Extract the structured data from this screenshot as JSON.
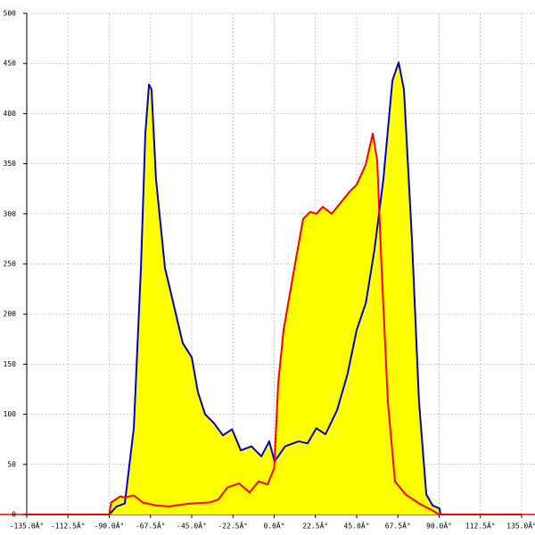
{
  "chart_data": {
    "type": "area",
    "xlim": [
      -135,
      135
    ],
    "ylim": [
      0,
      500
    ],
    "xticks": [
      {
        "value": -135,
        "label": "-135.0Â°"
      },
      {
        "value": -112.5,
        "label": "-112.5Â°"
      },
      {
        "value": -90,
        "label": "-90.0Â°"
      },
      {
        "value": -67.5,
        "label": "-67.5Â°"
      },
      {
        "value": -45,
        "label": "-45.0Â°"
      },
      {
        "value": -22.5,
        "label": "-22.5Â°"
      },
      {
        "value": 0,
        "label": "0.0Â°"
      },
      {
        "value": 22.5,
        "label": "22.5Â°"
      },
      {
        "value": 45,
        "label": "45.0Â°"
      },
      {
        "value": 67.5,
        "label": "67.5Â°"
      },
      {
        "value": 90,
        "label": "90.0Â°"
      },
      {
        "value": 112.5,
        "label": "112.5Â°"
      },
      {
        "value": 135,
        "label": "135.0Â°"
      }
    ],
    "yticks": [
      0,
      50,
      100,
      150,
      200,
      250,
      300,
      350,
      400,
      450,
      500
    ],
    "grid": true,
    "fill_color": "#ffff00",
    "series": [
      {
        "color": "#0000cc",
        "x": [
          -90,
          -86,
          -81.5,
          -76.6,
          -72.7,
          -70.3,
          -68.3,
          -66.9,
          -64.5,
          -59.6,
          -56.2,
          -49.9,
          -45,
          -41.6,
          -37.7,
          -32.8,
          -28,
          -23,
          -18.2,
          -12.4,
          -7,
          -2.7,
          0.2,
          6,
          13.4,
          18.2,
          23,
          28,
          34.3,
          40,
          45,
          50,
          54.7,
          59.6,
          64.5,
          67.9,
          70.8,
          75.2,
          79,
          83,
          86.4,
          90.2,
          90.7
        ],
        "values": [
          0,
          8,
          11,
          86,
          246,
          380,
          429,
          424,
          335,
          246,
          220,
          171,
          157,
          122,
          100,
          91,
          79,
          85,
          64,
          68,
          58,
          73,
          53,
          68,
          73,
          71,
          86,
          80,
          104,
          140,
          184,
          211,
          264,
          335,
          433,
          451,
          424,
          273,
          113,
          20,
          9,
          6,
          0
        ]
      },
      {
        "color": "#ff0000",
        "x": [
          -135,
          -90,
          -89,
          -84,
          -81.5,
          -76.6,
          -71.7,
          -64.5,
          -57.2,
          -49.9,
          -45,
          -35.3,
          -30.4,
          -25.5,
          -19.2,
          -13.4,
          -8.5,
          -3.6,
          0,
          2.2,
          5.1,
          11,
          15.8,
          19.7,
          23,
          26.5,
          31.4,
          35.3,
          41.1,
          45,
          49.9,
          53.8,
          56.2,
          58.6,
          62,
          65.9,
          71.7,
          79,
          86.4,
          90,
          135
        ],
        "values": [
          0,
          0,
          12,
          18,
          17,
          19,
          12,
          9,
          8,
          10,
          11,
          12,
          15,
          27,
          31,
          22,
          33,
          30,
          46,
          131,
          184,
          246,
          295,
          302,
          300,
          307,
          300,
          309,
          322,
          329,
          349,
          380,
          353,
          246,
          113,
          33,
          20,
          11,
          4,
          0,
          0
        ]
      }
    ]
  }
}
